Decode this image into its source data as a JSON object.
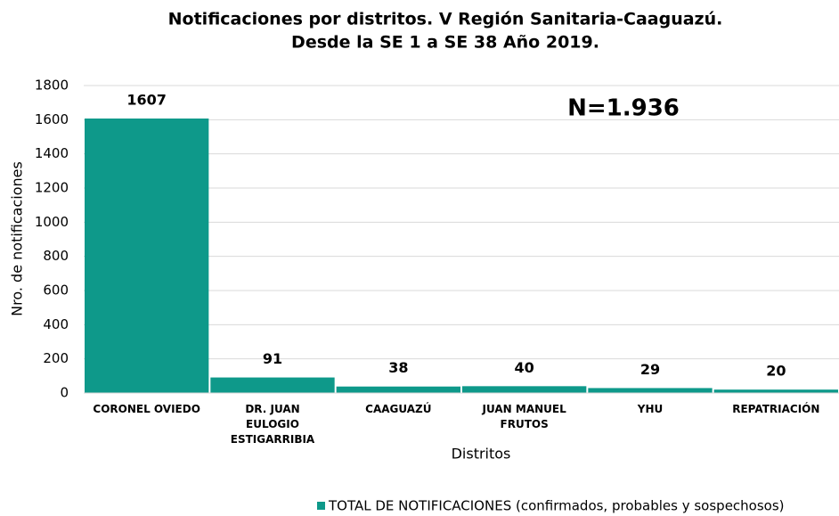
{
  "chart_data": {
    "type": "bar",
    "title": [
      "Notificaciones por distritos. V Región Sanitaria-Caaguazú.",
      "Desde la SE 1 a SE 38 Año 2019."
    ],
    "annotation": "N=1.936",
    "x_label": "Distritos",
    "y_label": "Nro. de notificaciones",
    "categories": [
      "CORONEL OVIEDO",
      "DR. JUAN EULOGIO ESTIGARRIBIA",
      "CAAGUAZÚ",
      "JUAN MANUEL FRUTOS",
      "YHU",
      "REPATRIACIÓN"
    ],
    "series": [
      {
        "name": "TOTAL DE NOTIFICACIONES (confirmados, probables y sospechosos)",
        "color": "#0e998a",
        "values": [
          1607,
          91,
          38,
          40,
          29,
          20
        ]
      }
    ],
    "ylim": [
      0,
      1800
    ],
    "yticks": [
      0,
      200,
      400,
      600,
      800,
      1000,
      1200,
      1400,
      1600,
      1800
    ],
    "grid": true
  }
}
